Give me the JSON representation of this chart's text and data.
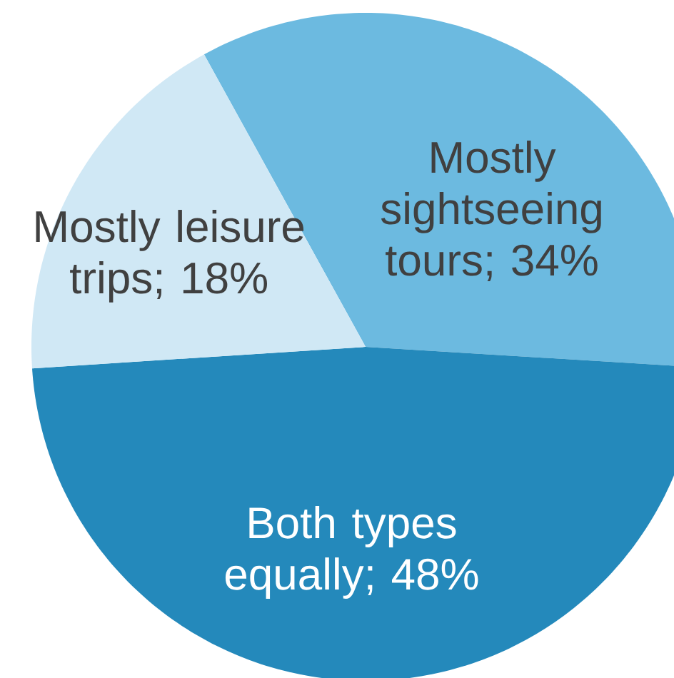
{
  "chart_data": {
    "type": "pie",
    "categories": [
      null,
      null,
      null
    ],
    "values": [
      34,
      48,
      18
    ],
    "colors": [
      "#6cbae0",
      "#2489bb",
      "#d0e8f5"
    ],
    "value_labels": [
      "Mostly sightseeing tours; 34%",
      "Both types equally; 48%",
      "Mostly leisure trips; 18%"
    ]
  }
}
